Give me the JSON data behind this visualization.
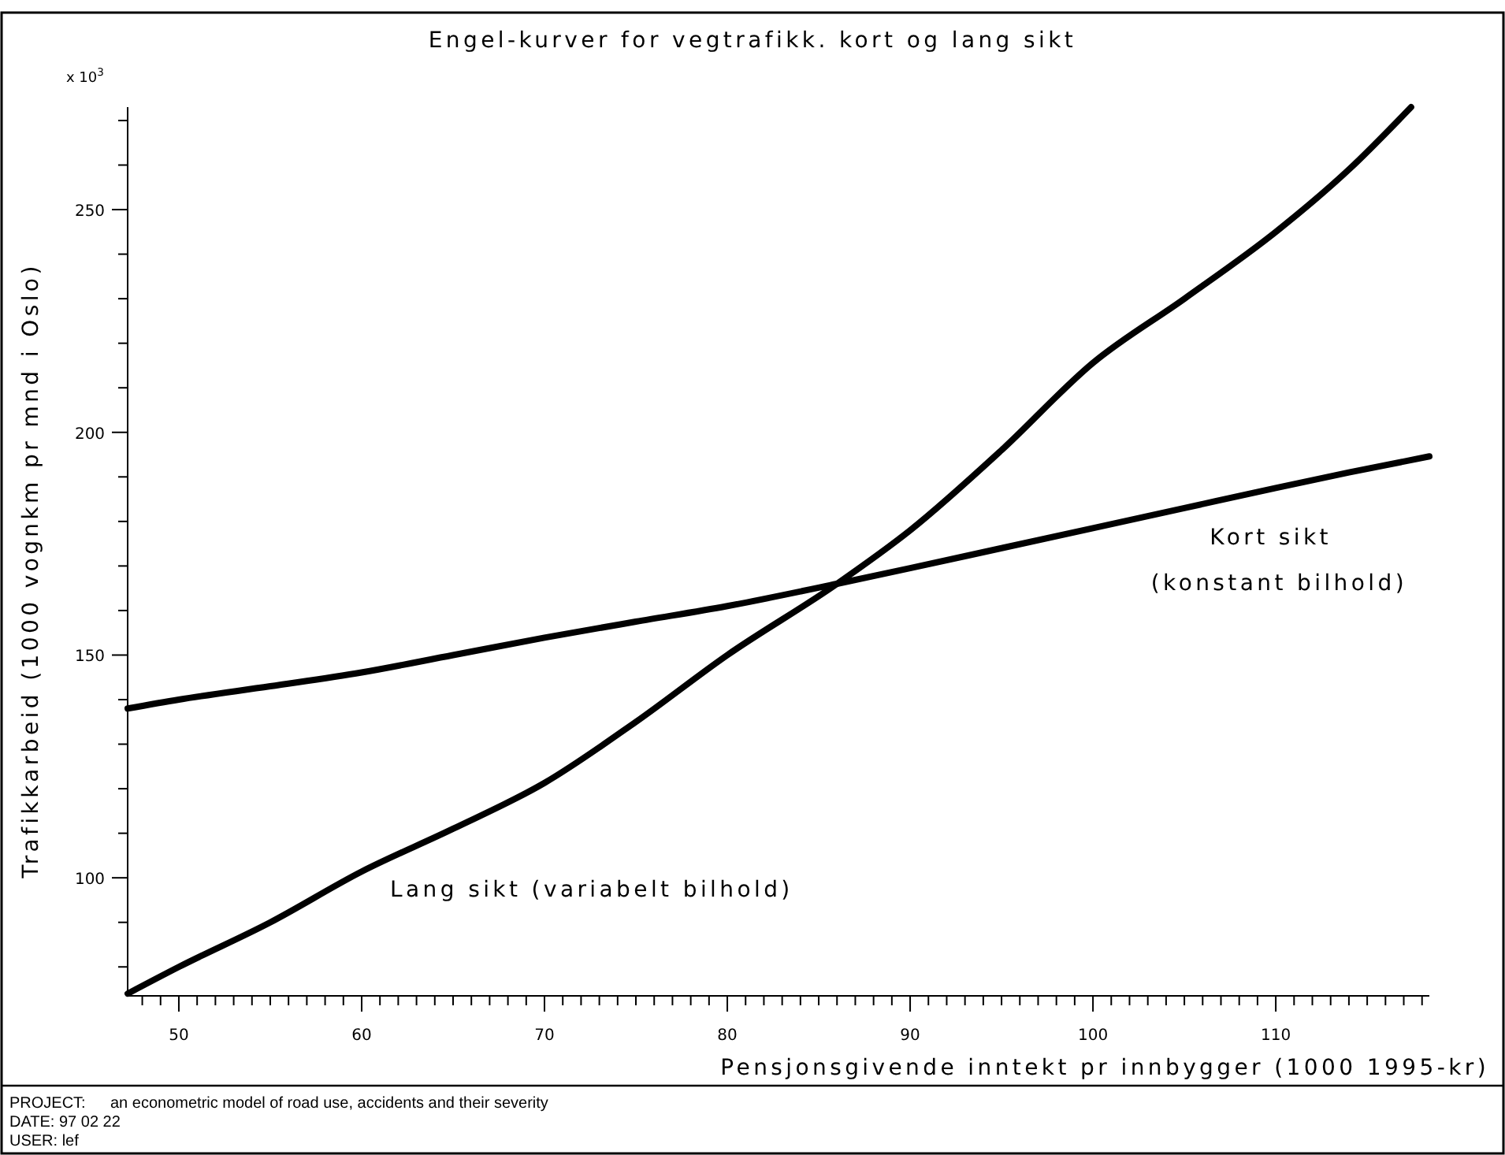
{
  "chart_data": {
    "type": "line",
    "title": "Engel-kurver for vegtrafikk. kort og lang sikt",
    "xlabel": "Pensjonsgivende inntekt pr innbygger (1000 1995-kr)",
    "ylabel": "Trafikkarbeid (1000 vognkm pr mnd i Oslo)",
    "annotations": [
      "x 10$^{3}$",
      "PROJECT:",
      "an econometric model of road use, accidents and their severity",
      "DATE: 97 02 22",
      "USER: lef"
    ],
    "xlim": [
      47.2,
      118.4
    ],
    "ylim": [
      73.5,
      273
    ],
    "xticks": [
      {
        "value": 48,
        "label": null
      },
      {
        "value": 49,
        "label": null
      },
      50,
      {
        "value": 51,
        "label": null
      },
      {
        "value": 52,
        "label": null
      },
      {
        "value": 53,
        "label": null
      },
      {
        "value": 54,
        "label": null
      },
      {
        "value": 55,
        "label": null
      },
      {
        "value": 56,
        "label": null
      },
      {
        "value": 57,
        "label": null
      },
      {
        "value": 58,
        "label": null
      },
      {
        "value": 59,
        "label": null
      },
      60,
      {
        "value": 61,
        "label": null
      },
      {
        "value": 62,
        "label": null
      },
      {
        "value": 63,
        "label": null
      },
      {
        "value": 64,
        "label": null
      },
      {
        "value": 65,
        "label": null
      },
      {
        "value": 66,
        "label": null
      },
      {
        "value": 67,
        "label": null
      },
      {
        "value": 68,
        "label": null
      },
      {
        "value": 69,
        "label": null
      },
      70,
      {
        "value": 71,
        "label": null
      },
      {
        "value": 72,
        "label": null
      },
      {
        "value": 73,
        "label": null
      },
      {
        "value": 74,
        "label": null
      },
      {
        "value": 75,
        "label": null
      },
      {
        "value": 76,
        "label": null
      },
      {
        "value": 77,
        "label": null
      },
      {
        "value": 78,
        "label": null
      },
      {
        "value": 79,
        "label": null
      },
      80,
      {
        "value": 81,
        "label": null
      },
      {
        "value": 82,
        "label": null
      },
      {
        "value": 83,
        "label": null
      },
      {
        "value": 84,
        "label": null
      },
      {
        "value": 85,
        "label": null
      },
      {
        "value": 86,
        "label": null
      },
      {
        "value": 87,
        "label": null
      },
      {
        "value": 88,
        "label": null
      },
      {
        "value": 89,
        "label": null
      },
      90,
      {
        "value": 91,
        "label": null
      },
      {
        "value": 92,
        "label": null
      },
      {
        "value": 93,
        "label": null
      },
      {
        "value": 94,
        "label": null
      },
      {
        "value": 95,
        "label": null
      },
      {
        "value": 96,
        "label": null
      },
      {
        "value": 97,
        "label": null
      },
      {
        "value": 98,
        "label": null
      },
      {
        "value": 99,
        "label": null
      },
      100,
      {
        "value": 101,
        "label": null
      },
      {
        "value": 102,
        "label": null
      },
      {
        "value": 103,
        "label": null
      },
      {
        "value": 104,
        "label": null
      },
      {
        "value": 105,
        "label": null
      },
      {
        "value": 106,
        "label": null
      },
      {
        "value": 107,
        "label": null
      },
      {
        "value": 108,
        "label": null
      },
      {
        "value": 109,
        "label": null
      },
      110,
      {
        "value": 111,
        "label": null
      },
      {
        "value": 112,
        "label": null
      },
      {
        "value": 113,
        "label": null
      },
      {
        "value": 114,
        "label": null
      },
      {
        "value": 115,
        "label": null
      },
      {
        "value": 116,
        "label": null
      },
      {
        "value": 117,
        "label": null
      },
      {
        "value": 118,
        "label": null
      }
    ],
    "yticks": [
      {
        "value": 80,
        "label": null
      },
      {
        "value": 90,
        "label": null
      },
      100,
      {
        "value": 110,
        "label": null
      },
      {
        "value": 120,
        "label": null
      },
      {
        "value": 130,
        "label": null
      },
      {
        "value": 140,
        "label": null
      },
      150,
      {
        "value": 160,
        "label": null
      },
      {
        "value": 170,
        "label": null
      },
      {
        "value": 180,
        "label": null
      },
      {
        "value": 190,
        "label": null
      },
      200,
      {
        "value": 210,
        "label": null
      },
      {
        "value": 220,
        "label": null
      },
      {
        "value": 230,
        "label": null
      },
      {
        "value": 240,
        "label": null
      },
      250,
      {
        "value": 260,
        "label": null
      },
      {
        "value": 270,
        "label": null
      }
    ],
    "marker": "none",
    "line_style": "solid",
    "series": [
      {
        "name": "Lang sikt (variabelt bilhold)",
        "color": "#000000",
        "x": [
          47.2,
          50,
          55,
          60,
          65,
          70,
          75,
          80,
          86,
          90,
          95,
          100,
          105,
          110,
          114,
          117.4
        ],
        "values": [
          74,
          80,
          90,
          101.4,
          111,
          121.3,
          135,
          150,
          166,
          178,
          196,
          215.6,
          230,
          245,
          259,
          273
        ]
      },
      {
        "name": "Kort sikt (konstant bilhold)",
        "color": "#000000",
        "x": [
          47.2,
          50,
          55,
          60,
          65,
          70,
          75,
          80,
          86,
          90,
          95,
          100,
          105,
          110,
          114,
          118.4
        ],
        "values": [
          138,
          140,
          143,
          146.1,
          150,
          153.9,
          157.5,
          161,
          166,
          169.5,
          174,
          178.5,
          183,
          187.5,
          191,
          194.6
        ]
      }
    ]
  }
}
